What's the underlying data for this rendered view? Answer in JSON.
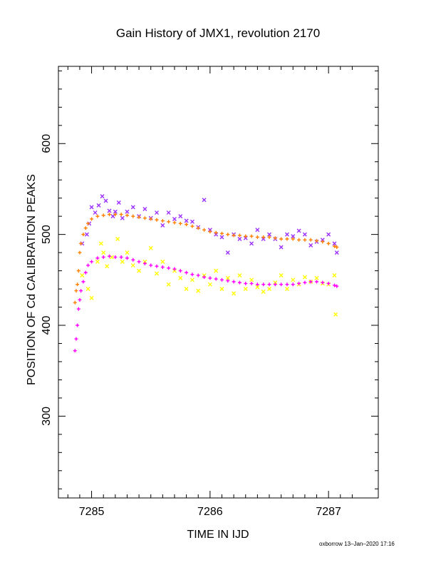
{
  "chart_data": {
    "type": "scatter",
    "title": "Gain History of JMX1, revolution 2170",
    "xlabel": "TIME IN IJD",
    "ylabel": "POSITION OF Cd CALIBRATION PEAKS",
    "xlim": [
      7284.72,
      7287.42
    ],
    "ylim": [
      210,
      685
    ],
    "xticks": [
      7285,
      7286,
      7287
    ],
    "xtick_labels": [
      "7285",
      "7286",
      "7287"
    ],
    "yticks": [
      300,
      400,
      500,
      600
    ],
    "ytick_labels": [
      "300",
      "400",
      "500",
      "600"
    ],
    "grid": false,
    "series": [
      {
        "marker": "x",
        "color": "#9b30ff",
        "points": [
          [
            7284.92,
            490
          ],
          [
            7284.96,
            500
          ],
          [
            7284.98,
            512
          ],
          [
            7285.0,
            530
          ],
          [
            7285.03,
            524
          ],
          [
            7285.06,
            532
          ],
          [
            7285.09,
            542
          ],
          [
            7285.12,
            537
          ],
          [
            7285.15,
            526
          ],
          [
            7285.18,
            520
          ],
          [
            7285.2,
            525
          ],
          [
            7285.23,
            535
          ],
          [
            7285.26,
            518
          ],
          [
            7285.3,
            525
          ],
          [
            7285.35,
            530
          ],
          [
            7285.4,
            520
          ],
          [
            7285.45,
            528
          ],
          [
            7285.5,
            518
          ],
          [
            7285.55,
            524
          ],
          [
            7285.6,
            510
          ],
          [
            7285.65,
            524
          ],
          [
            7285.7,
            517
          ],
          [
            7285.75,
            520
          ],
          [
            7285.8,
            515
          ],
          [
            7285.85,
            514
          ],
          [
            7285.9,
            508
          ],
          [
            7285.95,
            538
          ],
          [
            7286.0,
            505
          ],
          [
            7286.05,
            500
          ],
          [
            7286.1,
            497
          ],
          [
            7286.15,
            480
          ],
          [
            7286.2,
            500
          ],
          [
            7286.25,
            495
          ],
          [
            7286.3,
            496
          ],
          [
            7286.35,
            490
          ],
          [
            7286.4,
            505
          ],
          [
            7286.45,
            495
          ],
          [
            7286.5,
            500
          ],
          [
            7286.55,
            495
          ],
          [
            7286.6,
            486
          ],
          [
            7286.65,
            500
          ],
          [
            7286.7,
            498
          ],
          [
            7286.75,
            504
          ],
          [
            7286.8,
            500
          ],
          [
            7286.85,
            488
          ],
          [
            7286.9,
            492
          ],
          [
            7286.95,
            494
          ],
          [
            7287.0,
            500
          ],
          [
            7287.05,
            490
          ],
          [
            7287.07,
            480
          ]
        ]
      },
      {
        "marker": "+",
        "color": "#ff7f00",
        "points": [
          [
            7284.86,
            425
          ],
          [
            7284.87,
            438
          ],
          [
            7284.88,
            445
          ],
          [
            7284.89,
            460
          ],
          [
            7284.9,
            480
          ],
          [
            7284.91,
            490
          ],
          [
            7284.93,
            500
          ],
          [
            7284.95,
            507
          ],
          [
            7284.97,
            512
          ],
          [
            7285.0,
            517
          ],
          [
            7285.05,
            520
          ],
          [
            7285.1,
            521
          ],
          [
            7285.15,
            522
          ],
          [
            7285.2,
            522
          ],
          [
            7285.25,
            522
          ],
          [
            7285.3,
            521
          ],
          [
            7285.35,
            520
          ],
          [
            7285.4,
            519
          ],
          [
            7285.45,
            518
          ],
          [
            7285.5,
            517
          ],
          [
            7285.55,
            516
          ],
          [
            7285.6,
            515
          ],
          [
            7285.65,
            514
          ],
          [
            7285.7,
            513
          ],
          [
            7285.75,
            512
          ],
          [
            7285.8,
            511
          ],
          [
            7285.85,
            509
          ],
          [
            7285.9,
            507
          ],
          [
            7285.95,
            505
          ],
          [
            7286.0,
            503
          ],
          [
            7286.05,
            502
          ],
          [
            7286.1,
            501
          ],
          [
            7286.15,
            500
          ],
          [
            7286.2,
            499
          ],
          [
            7286.25,
            499
          ],
          [
            7286.3,
            498
          ],
          [
            7286.35,
            498
          ],
          [
            7286.4,
            497
          ],
          [
            7286.45,
            497
          ],
          [
            7286.5,
            497
          ],
          [
            7286.55,
            496
          ],
          [
            7286.6,
            495
          ],
          [
            7286.65,
            495
          ],
          [
            7286.7,
            495
          ],
          [
            7286.75,
            494
          ],
          [
            7286.8,
            494
          ],
          [
            7286.85,
            494
          ],
          [
            7286.9,
            493
          ],
          [
            7286.95,
            492
          ],
          [
            7287.0,
            490
          ],
          [
            7287.05,
            487
          ],
          [
            7287.07,
            486
          ]
        ]
      },
      {
        "marker": "x",
        "color": "#ffff00",
        "points": [
          [
            7284.92,
            455
          ],
          [
            7284.97,
            440
          ],
          [
            7285.0,
            430
          ],
          [
            7285.05,
            470
          ],
          [
            7285.08,
            490
          ],
          [
            7285.1,
            480
          ],
          [
            7285.13,
            465
          ],
          [
            7285.17,
            475
          ],
          [
            7285.22,
            495
          ],
          [
            7285.26,
            470
          ],
          [
            7285.3,
            480
          ],
          [
            7285.35,
            466
          ],
          [
            7285.4,
            460
          ],
          [
            7285.45,
            470
          ],
          [
            7285.5,
            485
          ],
          [
            7285.55,
            457
          ],
          [
            7285.6,
            470
          ],
          [
            7285.65,
            445
          ],
          [
            7285.7,
            460
          ],
          [
            7285.75,
            452
          ],
          [
            7285.8,
            440
          ],
          [
            7285.85,
            450
          ],
          [
            7285.9,
            438
          ],
          [
            7285.95,
            455
          ],
          [
            7286.0,
            445
          ],
          [
            7286.05,
            460
          ],
          [
            7286.1,
            440
          ],
          [
            7286.15,
            452
          ],
          [
            7286.2,
            435
          ],
          [
            7286.25,
            455
          ],
          [
            7286.3,
            440
          ],
          [
            7286.35,
            450
          ],
          [
            7286.4,
            442
          ],
          [
            7286.45,
            437
          ],
          [
            7286.5,
            440
          ],
          [
            7286.55,
            447
          ],
          [
            7286.6,
            455
          ],
          [
            7286.65,
            440
          ],
          [
            7286.7,
            450
          ],
          [
            7286.75,
            445
          ],
          [
            7286.8,
            453
          ],
          [
            7286.85,
            448
          ],
          [
            7286.9,
            452
          ],
          [
            7286.95,
            446
          ],
          [
            7287.0,
            445
          ],
          [
            7287.05,
            455
          ],
          [
            7287.06,
            412
          ]
        ]
      },
      {
        "marker": "+",
        "color": "#ff00ff",
        "points": [
          [
            7284.86,
            372
          ],
          [
            7284.87,
            385
          ],
          [
            7284.88,
            400
          ],
          [
            7284.89,
            418
          ],
          [
            7284.9,
            428
          ],
          [
            7284.91,
            438
          ],
          [
            7284.93,
            448
          ],
          [
            7284.95,
            458
          ],
          [
            7284.97,
            466
          ],
          [
            7285.0,
            470
          ],
          [
            7285.05,
            474
          ],
          [
            7285.1,
            475
          ],
          [
            7285.15,
            476
          ],
          [
            7285.2,
            475
          ],
          [
            7285.25,
            475
          ],
          [
            7285.3,
            474
          ],
          [
            7285.35,
            472
          ],
          [
            7285.4,
            470
          ],
          [
            7285.45,
            468
          ],
          [
            7285.5,
            466
          ],
          [
            7285.55,
            465
          ],
          [
            7285.6,
            464
          ],
          [
            7285.65,
            463
          ],
          [
            7285.7,
            462
          ],
          [
            7285.75,
            460
          ],
          [
            7285.8,
            458
          ],
          [
            7285.85,
            456
          ],
          [
            7285.9,
            455
          ],
          [
            7285.95,
            453
          ],
          [
            7286.0,
            452
          ],
          [
            7286.05,
            451
          ],
          [
            7286.1,
            450
          ],
          [
            7286.15,
            449
          ],
          [
            7286.2,
            448
          ],
          [
            7286.25,
            447
          ],
          [
            7286.3,
            446
          ],
          [
            7286.35,
            446
          ],
          [
            7286.4,
            445
          ],
          [
            7286.45,
            445
          ],
          [
            7286.5,
            445
          ],
          [
            7286.55,
            445
          ],
          [
            7286.6,
            445
          ],
          [
            7286.65,
            445
          ],
          [
            7286.7,
            445
          ],
          [
            7286.75,
            446
          ],
          [
            7286.8,
            447
          ],
          [
            7286.85,
            448
          ],
          [
            7286.9,
            448
          ],
          [
            7286.95,
            447
          ],
          [
            7287.0,
            446
          ],
          [
            7287.05,
            444
          ],
          [
            7287.07,
            443
          ]
        ]
      }
    ]
  },
  "footer": "oxborrow 13–Jan–2020 17:16"
}
